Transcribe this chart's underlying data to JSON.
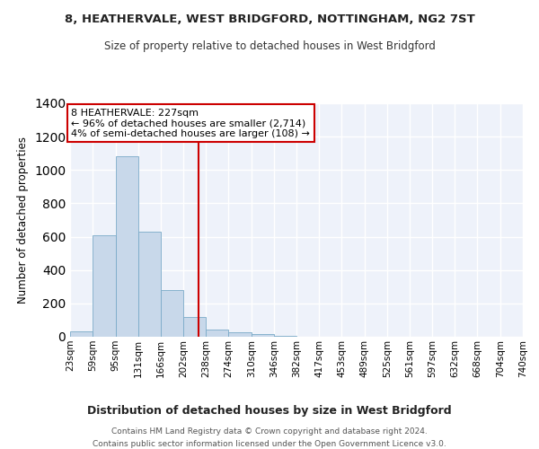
{
  "title": "8, HEATHERVALE, WEST BRIDGFORD, NOTTINGHAM, NG2 7ST",
  "subtitle": "Size of property relative to detached houses in West Bridgford",
  "xlabel": "Distribution of detached houses by size in West Bridgford",
  "ylabel": "Number of detached properties",
  "bar_color": "#c8d8ea",
  "bar_edge_color": "#7aaac8",
  "background_color": "#eef2fa",
  "grid_color": "#ffffff",
  "vline_x": 227,
  "vline_color": "#cc0000",
  "annotation_text": "8 HEATHERVALE: 227sqm\n← 96% of detached houses are smaller (2,714)\n4% of semi-detached houses are larger (108) →",
  "annotation_box_color": "#ffffff",
  "annotation_box_edge": "#cc0000",
  "bin_edges": [
    23,
    59,
    95,
    131,
    166,
    202,
    238,
    274,
    310,
    346,
    382,
    417,
    453,
    489,
    525,
    561,
    597,
    632,
    668,
    704,
    740
  ],
  "bar_heights": [
    30,
    610,
    1080,
    630,
    280,
    120,
    45,
    25,
    15,
    5,
    0,
    0,
    0,
    0,
    0,
    0,
    0,
    0,
    0,
    0
  ],
  "ylim": [
    0,
    1400
  ],
  "yticks": [
    0,
    200,
    400,
    600,
    800,
    1000,
    1200,
    1400
  ],
  "footnote": "Contains HM Land Registry data © Crown copyright and database right 2024.\nContains public sector information licensed under the Open Government Licence v3.0.",
  "tick_labels": [
    "23sqm",
    "59sqm",
    "95sqm",
    "131sqm",
    "166sqm",
    "202sqm",
    "238sqm",
    "274sqm",
    "310sqm",
    "346sqm",
    "382sqm",
    "417sqm",
    "453sqm",
    "489sqm",
    "525sqm",
    "561sqm",
    "597sqm",
    "632sqm",
    "668sqm",
    "704sqm",
    "740sqm"
  ]
}
